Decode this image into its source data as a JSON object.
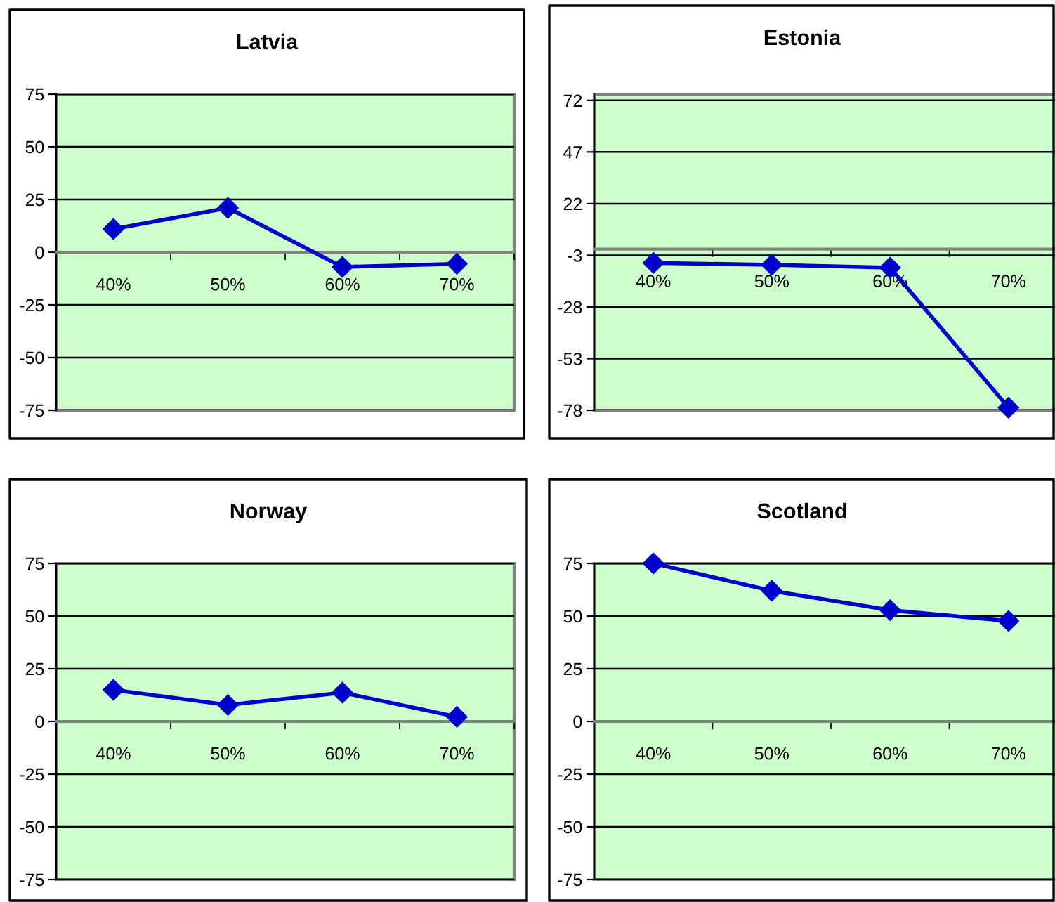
{
  "chart_data": [
    {
      "type": "line",
      "title": "Latvia",
      "categories": [
        "40%",
        "50%",
        "60%",
        "70%"
      ],
      "values": [
        11,
        21,
        -7,
        -5.5
      ],
      "color": "#0000cc",
      "ylim": [
        -75,
        75
      ],
      "yticks": [
        -75,
        -50,
        -25,
        0,
        25,
        50,
        75
      ],
      "grid": "y",
      "marker": "diamond"
    },
    {
      "type": "line",
      "title": "Estonia",
      "categories": [
        "40%",
        "50%",
        "60%",
        "70%"
      ],
      "values": [
        -6.7,
        -7.6,
        -9,
        -76.7
      ],
      "color": "#0000cc",
      "ylim": [
        -78,
        75
      ],
      "yticks": [
        -78,
        -53,
        -28,
        -3,
        22,
        47,
        72
      ],
      "grid": "y",
      "marker": "diamond"
    },
    {
      "type": "line",
      "title": "Norway",
      "categories": [
        "40%",
        "50%",
        "60%",
        "70%"
      ],
      "values": [
        15,
        7.8,
        13.7,
        2.2
      ],
      "color": "#0000cc",
      "ylim": [
        -75,
        75
      ],
      "yticks": [
        -75,
        -50,
        -25,
        0,
        25,
        50,
        75
      ],
      "grid": "y",
      "marker": "diamond"
    },
    {
      "type": "line",
      "title": "Scotland",
      "categories": [
        "40%",
        "50%",
        "60%",
        "70%"
      ],
      "values": [
        75,
        62,
        52.8,
        47.7
      ],
      "color": "#0000cc",
      "ylim": [
        -75,
        75
      ],
      "yticks": [
        -75,
        -50,
        -25,
        0,
        25,
        50,
        75
      ],
      "grid": "y",
      "marker": "diamond"
    }
  ]
}
